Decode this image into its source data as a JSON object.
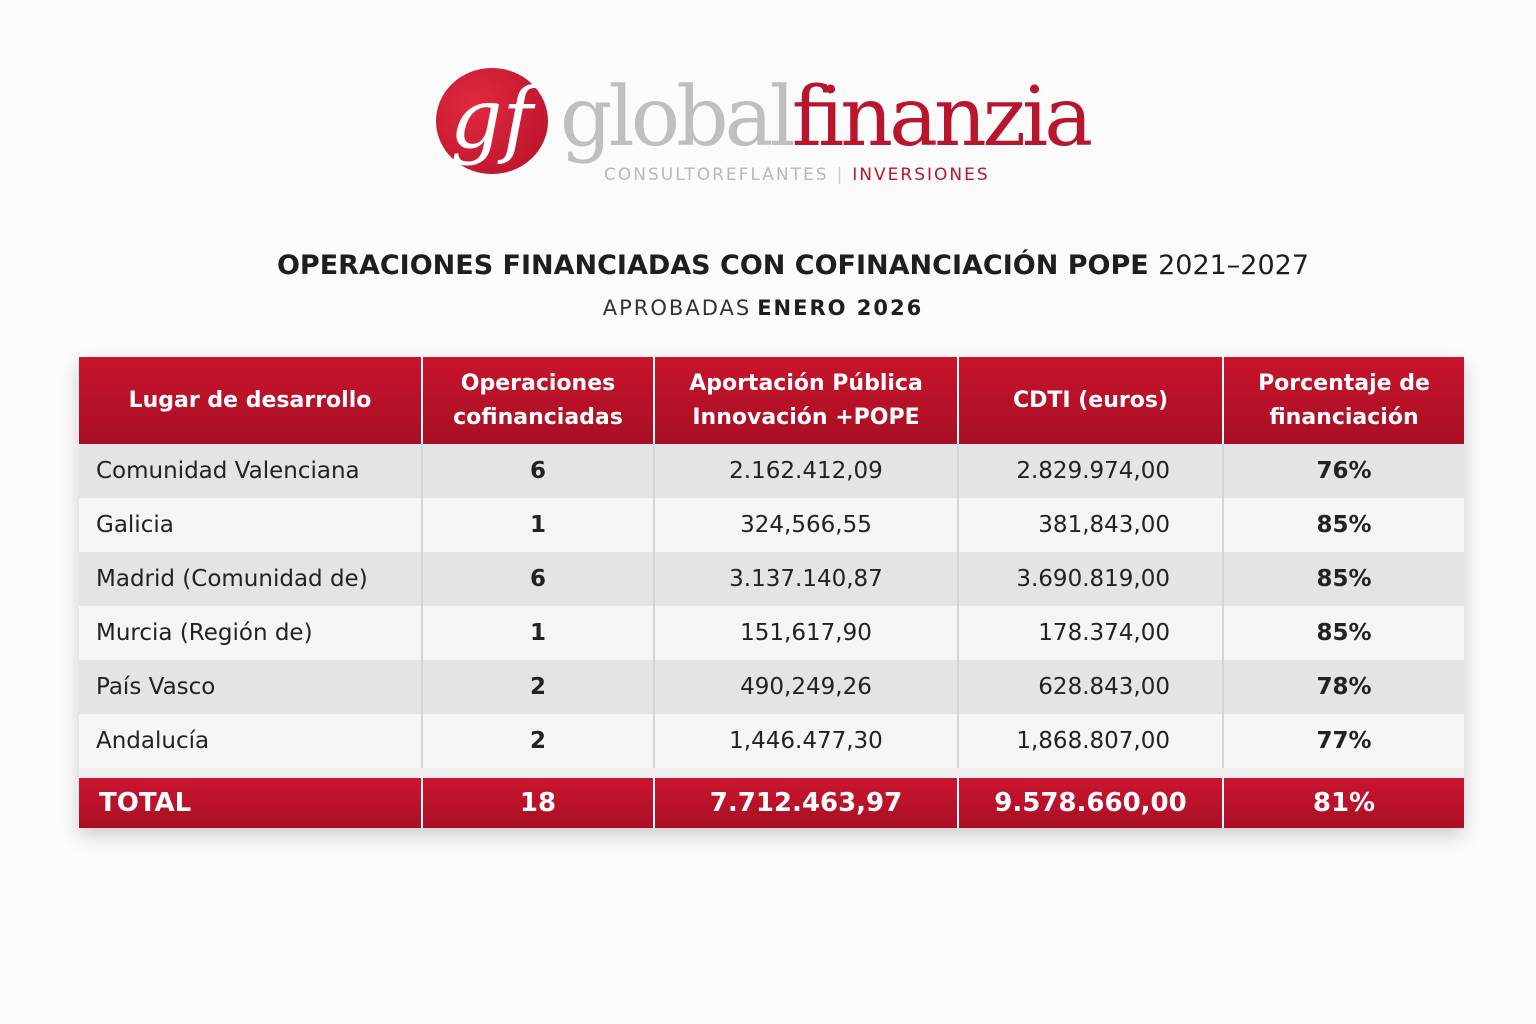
{
  "logo": {
    "monogram": "gf",
    "word_gray": "global",
    "word_red": "finanzia",
    "tag_left": "CONSULTOREFLANTES",
    "tag_sep": "|",
    "tag_right": "INVERSIONES"
  },
  "title": {
    "main": "OPERACIONES FINANCIADAS CON COFINANCIACIÓN POPE",
    "years": "2021–2027"
  },
  "subtitle": {
    "prefix": "APROBADAS",
    "period": "ENERO 2026"
  },
  "table": {
    "headers": [
      "Lugar de desarrollo",
      "Operaciones cofinanciadas",
      "Aportación Pública Innovación +POPE",
      "CDTI (euros)",
      "Porcentaje de financiación"
    ],
    "rows": [
      [
        "Comunidad Valenciana",
        "6",
        "2.162.412,09",
        "2.829.974,00",
        "76%"
      ],
      [
        "Galicia",
        "1",
        "324,566,55",
        "381,843,00",
        "85%"
      ],
      [
        "Madrid (Comunidad de)",
        "6",
        "3.137.140,87",
        "3.690.819,00",
        "85%"
      ],
      [
        "Murcia (Región de)",
        "1",
        "151,617,90",
        "178.374,00",
        "85%"
      ],
      [
        "País Vasco",
        "2",
        "490,249,26",
        "628.843,00",
        "78%"
      ],
      [
        "Andalucía",
        "2",
        "1,446.477,30",
        "1,868.807,00",
        "77%"
      ]
    ],
    "total": [
      "TOTAL",
      "18",
      "7.712.463,97",
      "9.578.660,00",
      "81%"
    ]
  }
}
